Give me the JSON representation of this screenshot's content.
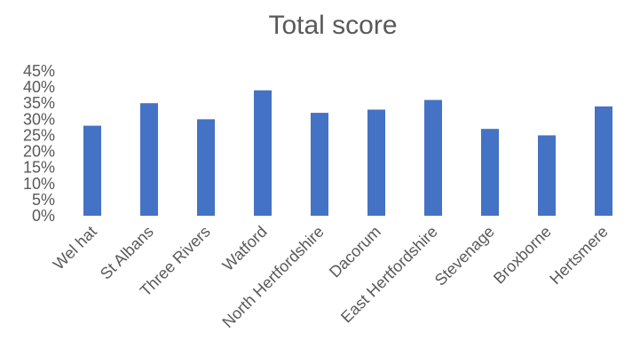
{
  "chart_data": {
    "type": "bar",
    "title": "Total score",
    "xlabel": "",
    "ylabel": "",
    "categories": [
      "Wel hat",
      "St Albans",
      "Three Rivers",
      "Watford",
      "North Hertfordshire",
      "Dacorum",
      "East Hertfordshire",
      "Stevenage",
      "Broxborne",
      "Hertsmere"
    ],
    "series": [
      {
        "values": [
          0.28,
          0.35,
          0.3,
          0.39,
          0.32,
          0.33,
          0.36,
          0.27,
          0.25,
          0.34
        ]
      }
    ],
    "ylim": [
      0,
      0.45
    ],
    "yticks": [
      "0%",
      "5%",
      "10%",
      "15%",
      "20%",
      "25%",
      "30%",
      "35%",
      "40%",
      "45%"
    ],
    "grid": false,
    "legend": "none",
    "colors": {
      "bar": "#4472c4",
      "text": "#595959"
    }
  }
}
